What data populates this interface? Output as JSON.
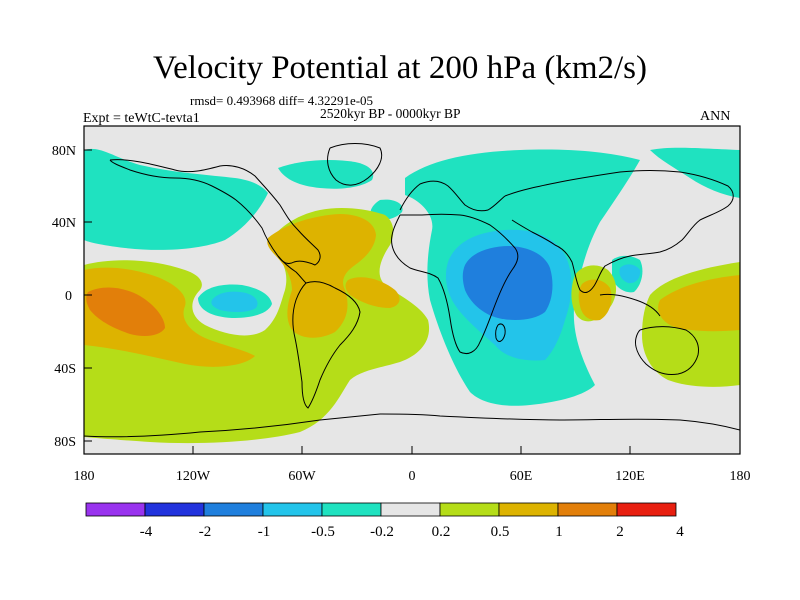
{
  "title": "Velocity Potential at 200 hPa (km2/s)",
  "stats_line": "rmsd= 0.493968 diff= 4.32291e-05",
  "period": "2520kyr BP - 0000kyr BP",
  "experiment": "Expt = teWtC-tevta1",
  "season": "ANN",
  "lat_ticks": [
    "80N",
    "40N",
    "0",
    "40S",
    "80S"
  ],
  "lon_ticks": [
    "180",
    "120W",
    "60W",
    "0",
    "60E",
    "120E",
    "180"
  ],
  "colorbar_labels": [
    "-4",
    "-2",
    "-1",
    "-0.5",
    "-0.2",
    "0.2",
    "0.5",
    "1",
    "2",
    "4"
  ],
  "colorbar_colors": [
    "#9933ee",
    "#2233dd",
    "#1f7fdd",
    "#23c4ea",
    "#1fe2c0",
    "#e6e6e6",
    "#b5dd18",
    "#ddb300",
    "#e27f0a",
    "#e81f10"
  ]
}
